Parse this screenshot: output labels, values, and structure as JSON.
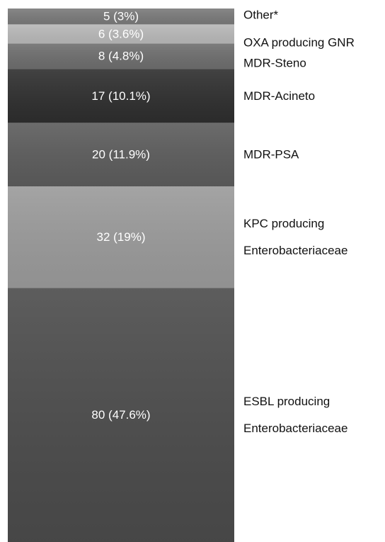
{
  "chart_data": {
    "type": "bar",
    "stacked": true,
    "orientation": "vertical",
    "total": 168,
    "segments": [
      {
        "category": "ESBL producing Enterobacteriaceae",
        "label_lines": [
          "ESBL producing",
          "Enterobacteriaceae"
        ],
        "value": 80,
        "percent": 47.6,
        "value_label": "80 (47.6%)",
        "color": "#4b4b4b"
      },
      {
        "category": "KPC producing Enterobacteriaceae",
        "label_lines": [
          "KPC producing",
          "Enterobacteriaceae"
        ],
        "value": 32,
        "percent": 19,
        "value_label": "32 (19%)",
        "color": "#9a9a9a"
      },
      {
        "category": "MDR-PSA",
        "label_lines": [
          "MDR-PSA"
        ],
        "value": 20,
        "percent": 11.9,
        "value_label": "20 (11.9%)",
        "color": "#5c5c5c"
      },
      {
        "category": "MDR-Acineto",
        "label_lines": [
          "MDR-Acineto"
        ],
        "value": 17,
        "percent": 10.1,
        "value_label": "17 (10.1%)",
        "color": "#2e2e2e"
      },
      {
        "category": "MDR-Steno",
        "label_lines": [
          "MDR-Steno"
        ],
        "value": 8,
        "percent": 4.8,
        "value_label": "8 (4.8%)",
        "color": "#6e6e6e"
      },
      {
        "category": "OXA producing GNR",
        "label_lines": [
          "OXA producing GNR"
        ],
        "value": 6,
        "percent": 3.6,
        "value_label": "6 (3.6%)",
        "color": "#b8b8b8"
      },
      {
        "category": "Other*",
        "label_lines": [
          "Other*"
        ],
        "value": 5,
        "percent": 3,
        "value_label": "5 (3%)",
        "color": "#7a7a7a"
      }
    ]
  }
}
